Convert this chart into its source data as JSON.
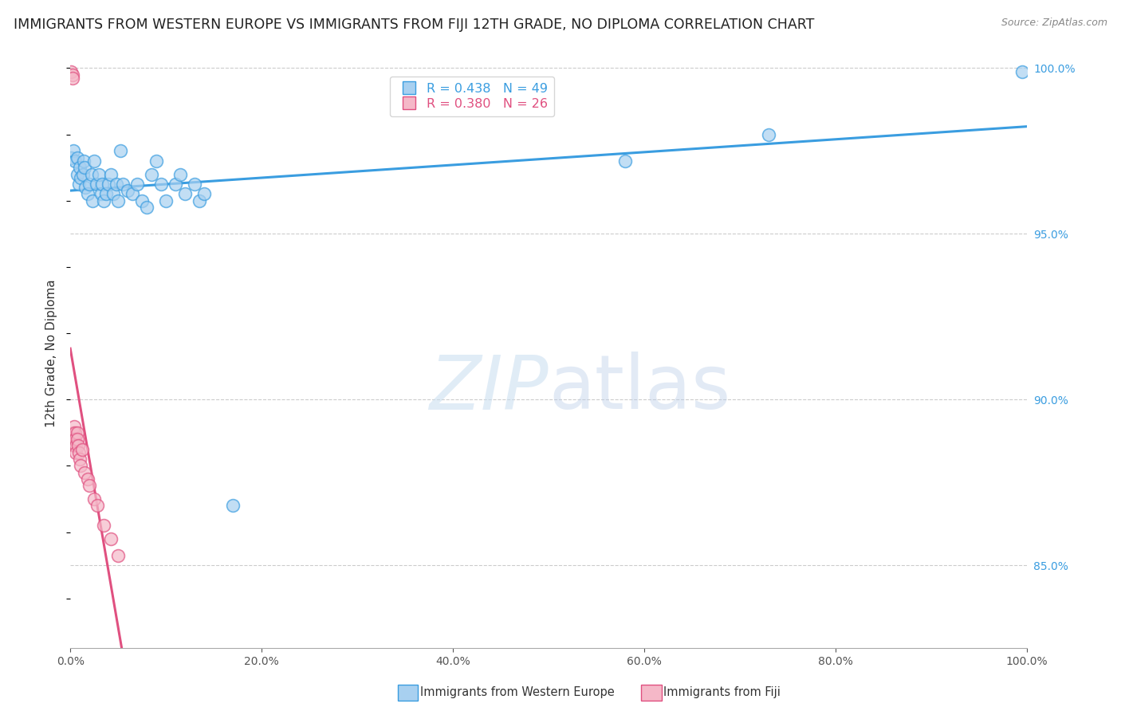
{
  "title": "IMMIGRANTS FROM WESTERN EUROPE VS IMMIGRANTS FROM FIJI 12TH GRADE, NO DIPLOMA CORRELATION CHART",
  "source": "Source: ZipAtlas.com",
  "ylabel": "12th Grade, No Diploma",
  "legend_r1": "R = 0.438",
  "legend_n1": "N = 49",
  "legend_r2": "R = 0.380",
  "legend_n2": "N = 26",
  "color_blue": "#a8d0f0",
  "color_pink": "#f5b8c8",
  "line_color_blue": "#3a9de0",
  "line_color_pink": "#e05080",
  "watermark_zip": "ZIP",
  "watermark_atlas": "atlas",
  "background_color": "#ffffff",
  "grid_color": "#cccccc",
  "title_fontsize": 12.5,
  "axis_label_fontsize": 11,
  "tick_fontsize": 10,
  "blue_x": [
    0.001,
    0.003,
    0.005,
    0.007,
    0.007,
    0.009,
    0.01,
    0.011,
    0.013,
    0.014,
    0.015,
    0.016,
    0.018,
    0.02,
    0.022,
    0.023,
    0.025,
    0.027,
    0.03,
    0.032,
    0.033,
    0.035,
    0.037,
    0.04,
    0.042,
    0.045,
    0.048,
    0.05,
    0.052,
    0.055,
    0.06,
    0.065,
    0.07,
    0.075,
    0.08,
    0.085,
    0.09,
    0.095,
    0.1,
    0.11,
    0.115,
    0.12,
    0.13,
    0.135,
    0.14,
    0.17,
    0.58,
    0.73,
    0.995
  ],
  "blue_y": [
    0.973,
    0.975,
    0.972,
    0.968,
    0.973,
    0.965,
    0.97,
    0.967,
    0.968,
    0.972,
    0.97,
    0.964,
    0.962,
    0.965,
    0.968,
    0.96,
    0.972,
    0.965,
    0.968,
    0.962,
    0.965,
    0.96,
    0.962,
    0.965,
    0.968,
    0.962,
    0.965,
    0.96,
    0.975,
    0.965,
    0.963,
    0.962,
    0.965,
    0.96,
    0.958,
    0.968,
    0.972,
    0.965,
    0.96,
    0.965,
    0.968,
    0.962,
    0.965,
    0.96,
    0.962,
    0.868,
    0.972,
    0.98,
    0.999
  ],
  "pink_x": [
    0.001,
    0.002,
    0.002,
    0.003,
    0.003,
    0.004,
    0.004,
    0.005,
    0.005,
    0.006,
    0.006,
    0.007,
    0.007,
    0.008,
    0.009,
    0.01,
    0.011,
    0.012,
    0.015,
    0.018,
    0.02,
    0.025,
    0.028,
    0.035,
    0.042,
    0.05
  ],
  "pink_y": [
    0.999,
    0.998,
    0.997,
    0.89,
    0.888,
    0.892,
    0.886,
    0.89,
    0.888,
    0.886,
    0.884,
    0.89,
    0.888,
    0.886,
    0.884,
    0.882,
    0.88,
    0.885,
    0.878,
    0.876,
    0.874,
    0.87,
    0.868,
    0.862,
    0.858,
    0.853
  ],
  "xlim": [
    0.0,
    1.0
  ],
  "ylim": [
    0.825,
    1.003
  ]
}
